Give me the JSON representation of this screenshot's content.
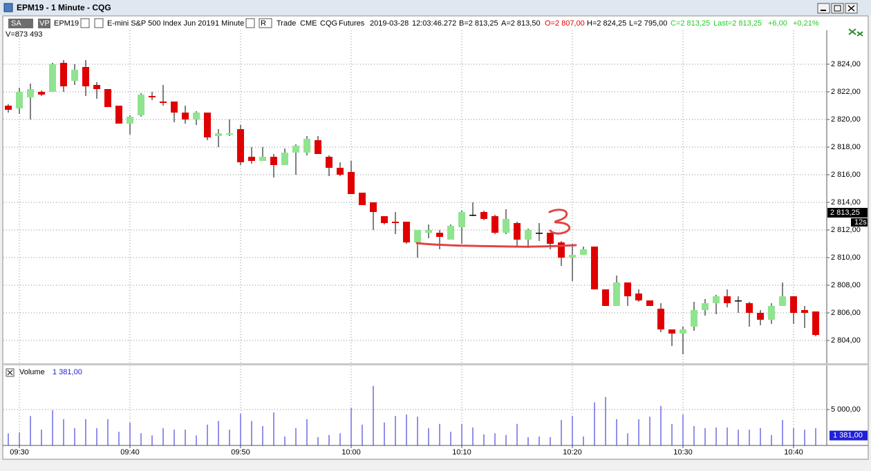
{
  "window": {
    "title": "EPM19 - 1 Minute - CQG"
  },
  "toolbar": {
    "sa": "SA",
    "vp": "VP",
    "symbol": "EPM19",
    "description": "E-mini S&P 500 Index Jun 2019",
    "interval": "1 Minute",
    "r": "R",
    "trade": "Trade",
    "exchange": "CME",
    "feed": "CQG",
    "kind": "Futures",
    "date": "2019-03-28",
    "time": "12:03:46.272",
    "bid": "B=2 813,25",
    "ask": "A=2 813,50",
    "open": "O=2 807,00",
    "high": "H=2 824,25",
    "low": "L=2 795,00",
    "close": "C=2 813,25",
    "last": "Last=2 813,25",
    "change": "+6,00",
    "change_pct": "+0,21%",
    "volume": "V=873 493"
  },
  "chart_data": [
    {
      "type": "candlestick",
      "up_color": "#90e490",
      "down_color": "#e00000",
      "grid": true,
      "categories": [
        null,
        "09:30",
        null,
        null,
        null,
        null,
        null,
        null,
        null,
        null,
        null,
        "09:40",
        null,
        null,
        null,
        null,
        null,
        null,
        null,
        null,
        null,
        "09:50",
        null,
        null,
        null,
        null,
        null,
        null,
        null,
        null,
        null,
        "10:00",
        null,
        null,
        null,
        null,
        null,
        null,
        null,
        null,
        null,
        "10:10",
        null,
        null,
        null,
        null,
        null,
        null,
        null,
        null,
        null,
        "10:20",
        null,
        null,
        null,
        null,
        null,
        null,
        null,
        null,
        null,
        "10:30",
        null,
        null,
        null,
        null,
        null,
        null,
        null,
        null,
        null,
        "10:40",
        null,
        null
      ],
      "open": [
        2821.0,
        2820.8,
        2821.6,
        2822.0,
        2822.0,
        2824.1,
        2822.8,
        2823.8,
        2822.5,
        2822.2,
        2821.0,
        2819.7,
        2820.3,
        2821.7,
        2821.3,
        2821.3,
        2820.5,
        2820.0,
        2820.5,
        2818.8,
        2818.9,
        2819.3,
        2817.3,
        2817.0,
        2817.3,
        2816.7,
        2817.6,
        2817.6,
        2818.5,
        2817.3,
        2816.5,
        2816.2,
        2814.7,
        2814.0,
        2813.0,
        2812.6,
        2812.6,
        2811.1,
        2811.8,
        2811.8,
        2811.3,
        2812.2,
        2813.1,
        2813.3,
        2813.0,
        2811.8,
        2812.5,
        2811.3,
        2811.8,
        2811.8,
        2811.1,
        2810.0,
        2810.2,
        2810.8,
        2807.7,
        2806.5,
        2808.2,
        2807.4,
        2806.9,
        2806.3,
        2804.8,
        2804.5,
        2805.0,
        2806.2,
        2806.7,
        2807.2,
        2806.9,
        2806.7,
        2806.0,
        2805.5,
        2806.5,
        2807.2,
        2806.2,
        2806.1
      ],
      "high": [
        2821.1,
        2822.3,
        2822.6,
        2822.1,
        2824.1,
        2824.3,
        2824.0,
        2824.3,
        2822.7,
        2822.2,
        2821.0,
        2820.3,
        2821.9,
        2822.0,
        2822.5,
        2821.3,
        2821.0,
        2820.6,
        2820.5,
        2819.3,
        2820.0,
        2819.6,
        2818.0,
        2818.0,
        2817.5,
        2817.9,
        2818.2,
        2818.8,
        2818.8,
        2817.4,
        2816.9,
        2817.0,
        2814.7,
        2814.0,
        2813.0,
        2813.3,
        2812.6,
        2812.0,
        2812.4,
        2812.0,
        2812.4,
        2813.4,
        2814.0,
        2813.4,
        2813.1,
        2813.5,
        2812.6,
        2812.1,
        2812.5,
        2811.8,
        2811.2,
        2811.0,
        2810.8,
        2810.8,
        2807.7,
        2808.7,
        2808.2,
        2807.7,
        2806.9,
        2806.7,
        2804.8,
        2805.0,
        2806.8,
        2807.0,
        2807.3,
        2807.7,
        2807.2,
        2806.8,
        2806.2,
        2806.7,
        2808.2,
        2807.2,
        2806.5,
        2806.1
      ],
      "low": [
        2820.5,
        2820.4,
        2820.0,
        2821.7,
        2822.0,
        2822.0,
        2822.5,
        2821.7,
        2821.5,
        2820.9,
        2819.7,
        2818.9,
        2820.2,
        2821.4,
        2821.0,
        2819.8,
        2819.7,
        2819.6,
        2818.5,
        2818.0,
        2818.8,
        2816.7,
        2816.8,
        2817.0,
        2815.8,
        2816.7,
        2816.0,
        2817.4,
        2817.5,
        2815.9,
        2815.9,
        2814.6,
        2813.8,
        2812.0,
        2812.4,
        2811.7,
        2811.0,
        2810.0,
        2811.4,
        2810.6,
        2811.3,
        2811.0,
        2813.0,
        2812.7,
        2811.7,
        2811.7,
        2810.8,
        2810.7,
        2811.2,
        2810.6,
        2809.4,
        2808.3,
        2810.2,
        2807.7,
        2806.5,
        2806.5,
        2806.5,
        2806.8,
        2806.5,
        2804.6,
        2803.6,
        2803.0,
        2804.7,
        2805.8,
        2805.9,
        2806.4,
        2806.0,
        2805.0,
        2805.1,
        2805.2,
        2806.5,
        2805.2,
        2804.9,
        2804.3
      ],
      "close": [
        2820.7,
        2822.0,
        2822.2,
        2821.8,
        2824.0,
        2822.4,
        2823.6,
        2822.4,
        2822.2,
        2820.9,
        2819.7,
        2820.2,
        2821.8,
        2821.6,
        2821.2,
        2820.5,
        2820.0,
        2820.5,
        2818.7,
        2819.0,
        2819.0,
        2816.9,
        2817.0,
        2817.3,
        2816.7,
        2817.6,
        2818.1,
        2818.6,
        2817.5,
        2816.5,
        2816.0,
        2814.6,
        2813.8,
        2813.3,
        2812.5,
        2812.5,
        2811.1,
        2812.0,
        2812.0,
        2811.5,
        2812.3,
        2813.3,
        2813.1,
        2812.8,
        2811.8,
        2812.8,
        2811.3,
        2812.0,
        2811.8,
        2811.0,
        2810.0,
        2810.2,
        2810.6,
        2807.7,
        2806.5,
        2808.2,
        2807.2,
        2806.9,
        2806.5,
        2804.8,
        2804.5,
        2804.8,
        2806.2,
        2806.7,
        2807.2,
        2806.7,
        2806.9,
        2806.0,
        2805.5,
        2806.5,
        2807.2,
        2806.0,
        2806.0,
        2804.4
      ],
      "ylim": [
        2802.3,
        2826.45
      ],
      "yticks": [
        {
          "value": 2804,
          "label": "2 804,00"
        },
        {
          "value": 2806,
          "label": "2 806,00"
        },
        {
          "value": 2808,
          "label": "2 808,00"
        },
        {
          "value": 2810,
          "label": "2 810,00"
        },
        {
          "value": 2812,
          "label": "2 812,00"
        },
        {
          "value": 2814,
          "label": "2 814,00"
        },
        {
          "value": 2816,
          "label": "2 816,00"
        },
        {
          "value": 2818,
          "label": "2 818,00"
        },
        {
          "value": 2820,
          "label": "2 820,00"
        },
        {
          "value": 2822,
          "label": "2 822,00"
        },
        {
          "value": 2824,
          "label": "2 824,00"
        }
      ],
      "last_marker": {
        "value": 2813.25,
        "label": "2 813,25"
      },
      "timer": "12s"
    },
    {
      "type": "bar",
      "title": "Volume",
      "color": "#2020d8",
      "grid": true,
      "categories": [
        null,
        "09:30",
        null,
        null,
        null,
        null,
        null,
        null,
        null,
        null,
        null,
        "09:40",
        null,
        null,
        null,
        null,
        null,
        null,
        null,
        null,
        null,
        "09:50",
        null,
        null,
        null,
        null,
        null,
        null,
        null,
        null,
        null,
        "10:00",
        null,
        null,
        null,
        null,
        null,
        null,
        null,
        null,
        null,
        "10:10",
        null,
        null,
        null,
        null,
        null,
        null,
        null,
        null,
        null,
        "10:20",
        null,
        null,
        null,
        null,
        null,
        null,
        null,
        null,
        null,
        "10:30",
        null,
        null,
        null,
        null,
        null,
        null,
        null,
        null,
        null,
        "10:40",
        null,
        null
      ],
      "values": [
        1700,
        1800,
        4100,
        2200,
        4900,
        3650,
        2400,
        3650,
        2400,
        3650,
        1900,
        3200,
        1700,
        1400,
        2400,
        2200,
        2200,
        1400,
        2900,
        3400,
        2200,
        4400,
        3400,
        2700,
        4600,
        1250,
        2400,
        3650,
        1150,
        1450,
        1700,
        5200,
        2900,
        8300,
        3200,
        4100,
        4300,
        4000,
        2400,
        3000,
        1900,
        3000,
        2500,
        1550,
        1700,
        1450,
        3000,
        1150,
        1250,
        1150,
        3550,
        4100,
        1250,
        6000,
        6750,
        3650,
        1700,
        3650,
        4000,
        5500,
        3000,
        4300,
        2700,
        2400,
        2500,
        2500,
        2200,
        2200,
        2400,
        1450,
        3550,
        2400,
        2200,
        2400
      ],
      "ylim": [
        0,
        11060
      ],
      "yticks": [
        {
          "value": 5000,
          "label": "5 000,00"
        }
      ],
      "current": {
        "value": 1381,
        "label": "1 381,00"
      }
    }
  ]
}
